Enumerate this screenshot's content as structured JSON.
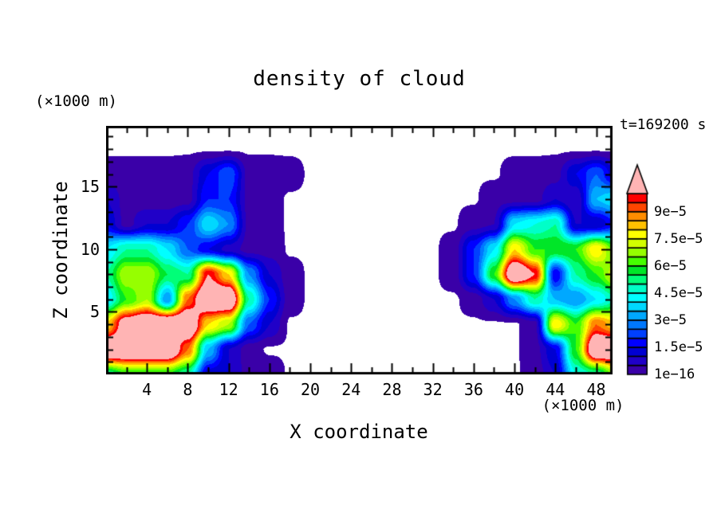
{
  "page": {
    "background": "#ffffff"
  },
  "chart": {
    "title": "density of cloud",
    "time_label": "t=169200 s",
    "x_axis": {
      "label": "X coordinate",
      "unit": "(×1000 m)",
      "ticks": [
        4,
        8,
        12,
        16,
        20,
        24,
        28,
        32,
        36,
        40,
        44,
        48
      ],
      "minor_tick_step": 2,
      "range": [
        0,
        49.6
      ]
    },
    "z_axis": {
      "label": "Z coordinate",
      "unit": "(×1000 m)",
      "ticks": [
        5,
        10,
        15
      ],
      "minor_tick_step": 1,
      "range": [
        0,
        19.85
      ]
    },
    "colorbar": {
      "labels": [
        "1e−16",
        "1.5e−5",
        "3e−5",
        "4.5e−5",
        "6e−5",
        "7.5e−5",
        "9e−5"
      ],
      "label_boundary_indices": [
        0,
        3,
        6,
        9,
        12,
        15,
        18
      ],
      "colors": [
        "#3a00a8",
        "#2000c8",
        "#0000d2",
        "#0000ff",
        "#0040ff",
        "#0078ff",
        "#00a8ff",
        "#00d8ff",
        "#00ffff",
        "#00ffc8",
        "#00ff78",
        "#00e628",
        "#46ff00",
        "#96ff00",
        "#d2ff00",
        "#ffff00",
        "#ffc000",
        "#ff8c00",
        "#ff4600",
        "#ff0000"
      ],
      "over_color": "#ffb4b4",
      "under_color": "#ffffff"
    }
  },
  "chart_data": {
    "type": "filled_contour",
    "title": "density of cloud",
    "xlabel": "X coordinate (×1000 m)",
    "ylabel": "Z coordinate (×1000 m)",
    "time_annotation": "t=169200 s",
    "xlim": [
      0,
      49.6
    ],
    "ylim": [
      0,
      19.85
    ],
    "levels": [
      1e-16,
      5e-06,
      1e-05,
      1.5e-05,
      2e-05,
      2.5e-05,
      3e-05,
      3.5e-05,
      4e-05,
      4.5e-05,
      5e-05,
      5.5e-05,
      6e-05,
      6.5e-05,
      7e-05,
      7.5e-05,
      8e-05,
      8.5e-05,
      9e-05,
      9.5e-05,
      0.0001
    ],
    "labeled_levels": [
      "1e−16",
      "1.5e−5",
      "3e−5",
      "4.5e−5",
      "6e−5",
      "7.5e−5",
      "9e−5"
    ],
    "grid": {
      "comment": "estimated cloud-density field read from the figure; values in units of 1e-5, 0 = below 1e-16 (white)",
      "x": [
        0,
        2,
        4,
        6,
        8,
        10,
        12,
        14,
        16,
        18,
        20,
        22,
        24,
        26,
        28,
        30,
        32,
        34,
        36,
        38,
        40,
        42,
        44,
        46,
        48,
        50
      ],
      "z": [
        0,
        2,
        4,
        6,
        8,
        10,
        12,
        14,
        16,
        18,
        20
      ],
      "rows_order": "bottom_to_top",
      "values_unit": "1e-5",
      "values": [
        [
          5,
          6,
          6,
          6,
          5,
          1.2,
          1,
          0.3,
          0.3,
          0,
          0,
          0,
          0,
          0,
          0,
          0,
          0,
          0,
          0,
          0,
          0,
          0.2,
          1,
          4.5,
          5,
          7
        ],
        [
          12,
          12,
          12,
          12,
          9,
          3.5,
          1,
          0.2,
          0,
          0,
          0,
          0,
          0,
          0,
          0,
          0,
          0,
          0,
          0,
          0,
          0,
          0.3,
          1.5,
          6,
          12,
          12
        ],
        [
          8,
          11,
          12,
          12,
          12,
          8,
          7,
          2.5,
          1,
          0,
          0,
          0,
          0,
          0,
          0,
          0,
          0,
          0,
          0,
          0,
          0,
          0.3,
          8,
          6,
          9,
          8
        ],
        [
          4,
          6,
          7,
          3,
          9,
          12,
          12,
          5,
          2,
          0.2,
          0,
          0,
          0,
          0,
          0,
          0,
          0,
          0,
          0.2,
          1,
          3,
          5,
          3.5,
          3,
          4,
          5
        ],
        [
          5,
          7,
          7,
          5.5,
          5,
          10,
          8,
          3,
          1,
          0.2,
          0,
          0,
          0,
          0,
          0,
          0,
          0,
          0.2,
          2,
          6,
          12,
          10,
          1.5,
          5,
          6,
          7.5
        ],
        [
          4,
          5,
          5,
          4,
          2.5,
          1.5,
          0.8,
          0.3,
          0.3,
          0,
          0,
          0,
          0,
          0,
          0,
          0,
          0,
          0.2,
          2,
          4,
          8,
          6,
          6,
          6,
          8,
          6
        ],
        [
          1.5,
          0.3,
          1,
          1,
          2,
          4,
          3,
          0.3,
          0.2,
          0,
          0,
          0,
          0,
          0,
          0,
          0,
          0,
          0,
          0.3,
          0.5,
          4,
          4.5,
          5,
          1,
          1,
          2
        ],
        [
          1,
          0.3,
          0.2,
          0.2,
          0.3,
          2,
          2,
          0.3,
          0.2,
          0,
          0,
          0,
          0,
          0,
          0,
          0,
          0,
          0,
          0,
          0.3,
          0.3,
          0.3,
          1,
          0.5,
          3.5,
          4
        ],
        [
          0.2,
          0.2,
          0.2,
          0.2,
          0.3,
          1.5,
          2.5,
          0.3,
          0.3,
          0.2,
          0,
          0,
          0,
          0,
          0,
          0,
          0,
          0,
          0,
          0,
          0.2,
          0.2,
          0.3,
          1.5,
          2.5,
          1
        ],
        [
          0,
          0,
          0,
          0,
          0,
          0,
          0,
          0,
          0,
          0,
          0,
          0,
          0,
          0,
          0,
          0,
          0,
          0,
          0,
          0,
          0,
          0,
          0,
          0,
          0,
          0
        ],
        [
          0,
          0,
          0,
          0,
          0,
          0,
          0,
          0,
          0,
          0,
          0,
          0,
          0,
          0,
          0,
          0,
          0,
          0,
          0,
          0,
          0,
          0,
          0,
          0,
          0,
          0
        ]
      ]
    }
  }
}
